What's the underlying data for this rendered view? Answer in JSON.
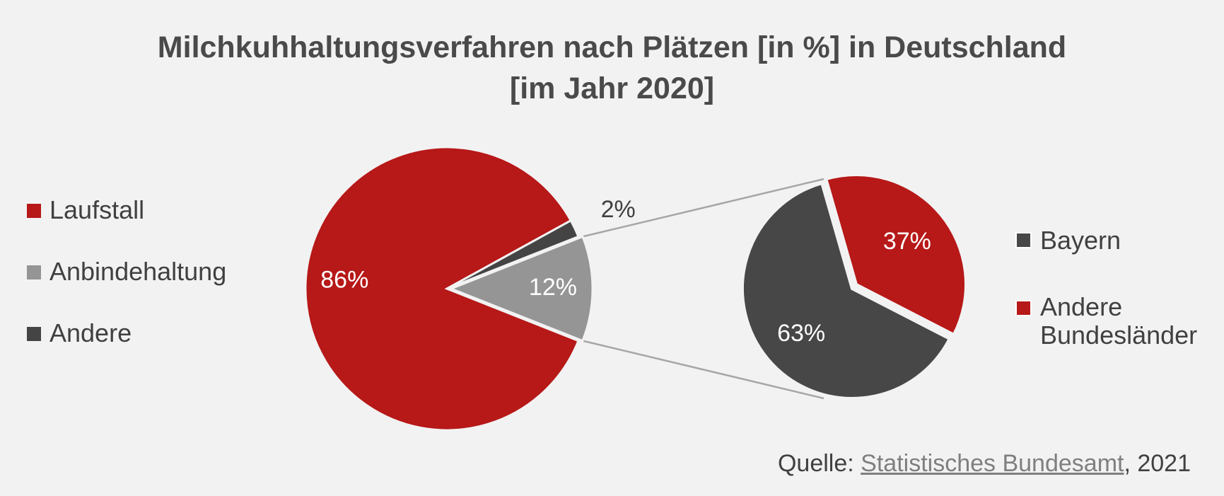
{
  "title_line1": "Milchkuhhaltungsverfahren nach Plätzen [in %] in Deutschland",
  "title_line2": "[im Jahr 2020]",
  "source": {
    "prefix": "Quelle: ",
    "link": "Statistisches Bundesamt",
    "suffix": ", 2021"
  },
  "chart_data": [
    {
      "type": "pie",
      "name": "main",
      "categories": [
        "Laufstall",
        "Anbindehaltung",
        "Andere"
      ],
      "values": [
        86,
        12,
        2
      ],
      "labels": [
        "86%",
        "12%",
        "2%"
      ],
      "colors": [
        "#b71818",
        "#959595",
        "#444444"
      ],
      "legend_position": "left"
    },
    {
      "type": "pie",
      "name": "detail of Anbindehaltung",
      "categories": [
        "Bayern",
        "Andere Bundesländer"
      ],
      "values": [
        63,
        37
      ],
      "labels": [
        "63%",
        "37%"
      ],
      "colors": [
        "#474747",
        "#b71818"
      ],
      "legend_position": "right"
    }
  ]
}
